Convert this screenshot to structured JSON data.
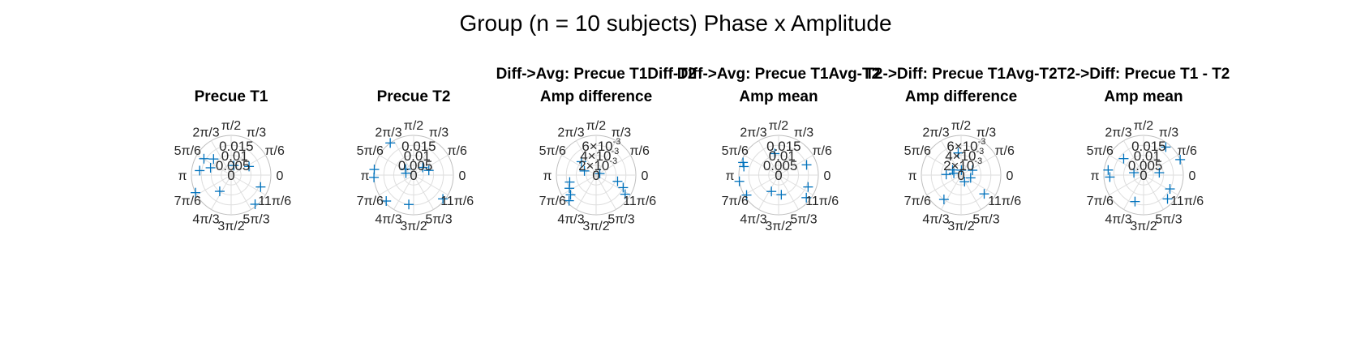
{
  "figure_title": "Group (n = 10 subjects) Phase x Amplitude",
  "colors": {
    "marker": "#0072BD",
    "grid": "#dedede",
    "text": "#262626"
  },
  "theta_tick_labels": [
    "0",
    "π/6",
    "π/3",
    "π/2",
    "2π/3",
    "5π/6",
    "π",
    "7π/6",
    "4π/3",
    "3π/2",
    "5π/3",
    "11π/6"
  ],
  "chart_data": [
    {
      "type": "scatter",
      "subtype": "polar",
      "marker": "+",
      "suptitle": "",
      "title": "Precue T1",
      "rlim": [
        0,
        0.02
      ],
      "r_tick_labels": [
        {
          "value": 0,
          "text": "0"
        },
        {
          "value": 0.005,
          "text": "0.005"
        },
        {
          "value": 0.01,
          "text": "0.01"
        },
        {
          "value": 0.015,
          "text": "0.015"
        }
      ],
      "points": [
        {
          "theta": 2.6,
          "r": 0.016
        },
        {
          "theta": 3.0,
          "r": 0.016
        },
        {
          "theta": 2.4,
          "r": 0.012
        },
        {
          "theta": 2.8,
          "r": 0.011
        },
        {
          "theta": 1.3,
          "r": 0.005
        },
        {
          "theta": 0.45,
          "r": 0.01
        },
        {
          "theta": 3.6,
          "r": 0.02
        },
        {
          "theta": 4.1,
          "r": 0.01
        },
        {
          "theta": 5.9,
          "r": 0.016
        },
        {
          "theta": 5.4,
          "r": 0.019
        }
      ]
    },
    {
      "type": "scatter",
      "subtype": "polar",
      "marker": "+",
      "suptitle": "",
      "title": "Precue T2",
      "rlim": [
        0,
        0.02
      ],
      "r_tick_labels": [
        {
          "value": 0,
          "text": "0"
        },
        {
          "value": 0.005,
          "text": "0.005"
        },
        {
          "value": 0.01,
          "text": "0.01"
        },
        {
          "value": 0.015,
          "text": "0.015"
        }
      ],
      "points": [
        {
          "theta": 2.2,
          "r": 0.02
        },
        {
          "theta": 3.0,
          "r": 0.02
        },
        {
          "theta": 3.2,
          "r": 0.02
        },
        {
          "theta": 2.5,
          "r": 0.005
        },
        {
          "theta": 3.9,
          "r": 0.019
        },
        {
          "theta": 4.55,
          "r": 0.015
        },
        {
          "theta": 5.6,
          "r": 0.019
        },
        {
          "theta": 0.3,
          "r": 0.008
        },
        {
          "theta": 0.7,
          "r": 0.006
        },
        {
          "theta": 2.9,
          "r": 0.004
        }
      ]
    },
    {
      "type": "scatter",
      "subtype": "polar",
      "marker": "+",
      "suptitle": "Diff->Avg: Precue T1Diff-T2",
      "title": "Amp difference",
      "rlim": [
        0,
        0.008
      ],
      "r_tick_labels": [
        {
          "value": 0,
          "text": "0"
        },
        {
          "value": 0.002,
          "text": "2×10",
          "exp": "-3"
        },
        {
          "value": 0.004,
          "text": "4×10",
          "exp": "-3"
        },
        {
          "value": 0.006,
          "text": "6×10",
          "exp": "-3"
        }
      ],
      "points": [
        {
          "theta": 0.4,
          "r": 0.0008
        },
        {
          "theta": 5.85,
          "r": 0.006
        },
        {
          "theta": 6.0,
          "r": 0.0045
        },
        {
          "theta": 5.7,
          "r": 0.007
        },
        {
          "theta": 3.6,
          "r": 0.006
        },
        {
          "theta": 3.9,
          "r": 0.0075
        },
        {
          "theta": 3.8,
          "r": 0.0065
        },
        {
          "theta": 2.4,
          "r": 0.004
        },
        {
          "theta": 2.8,
          "r": 0.0025
        },
        {
          "theta": 3.4,
          "r": 0.0055
        }
      ]
    },
    {
      "type": "scatter",
      "subtype": "polar",
      "marker": "+",
      "suptitle": "Diff->Avg: Precue T1Avg-T2",
      "title": "Amp mean",
      "rlim": [
        0,
        0.02
      ],
      "r_tick_labels": [
        {
          "value": 0,
          "text": "0"
        },
        {
          "value": 0.005,
          "text": "0.005"
        },
        {
          "value": 0.01,
          "text": "0.01"
        },
        {
          "value": 0.015,
          "text": "0.015"
        }
      ],
      "points": [
        {
          "theta": 2.8,
          "r": 0.019
        },
        {
          "theta": 2.9,
          "r": 0.018
        },
        {
          "theta": 3.3,
          "r": 0.02
        },
        {
          "theta": 3.7,
          "r": 0.019
        },
        {
          "theta": 1.75,
          "r": 0.011
        },
        {
          "theta": 5.9,
          "r": 0.016
        },
        {
          "theta": 5.6,
          "r": 0.018
        },
        {
          "theta": 4.3,
          "r": 0.009
        },
        {
          "theta": 0.35,
          "r": 0.015
        },
        {
          "theta": 4.85,
          "r": 0.01
        }
      ]
    },
    {
      "type": "scatter",
      "subtype": "polar",
      "marker": "+",
      "suptitle": "T2->Diff: Precue T1Avg-T2",
      "title": "Amp difference",
      "rlim": [
        0,
        0.008
      ],
      "r_tick_labels": [
        {
          "value": 0,
          "text": "0"
        },
        {
          "value": 0.002,
          "text": "2×10",
          "exp": "-3"
        },
        {
          "value": 0.004,
          "text": "4×10",
          "exp": "-3"
        },
        {
          "value": 0.006,
          "text": "6×10",
          "exp": "-3"
        }
      ],
      "points": [
        {
          "theta": 1.7,
          "r": 0.0045
        },
        {
          "theta": 2.6,
          "r": 0.002
        },
        {
          "theta": 2.9,
          "r": 0.0015
        },
        {
          "theta": 3.1,
          "r": 0.003
        },
        {
          "theta": 0.4,
          "r": 0.0025
        },
        {
          "theta": 6.0,
          "r": 0.002
        },
        {
          "theta": 5.6,
          "r": 0.006
        },
        {
          "theta": 4.1,
          "r": 0.006
        },
        {
          "theta": 5.2,
          "r": 0.0015
        },
        {
          "theta": 1.5,
          "r": 0.001
        }
      ]
    },
    {
      "type": "scatter",
      "subtype": "polar",
      "marker": "+",
      "suptitle": "T2->Diff: Precue T1 - T2",
      "title": "Amp mean",
      "rlim": [
        0,
        0.02
      ],
      "r_tick_labels": [
        {
          "value": 0,
          "text": "0"
        },
        {
          "value": 0.005,
          "text": "0.005"
        },
        {
          "value": 0.01,
          "text": "0.01"
        },
        {
          "value": 0.015,
          "text": "0.015"
        }
      ],
      "points": [
        {
          "theta": 2.45,
          "r": 0.013
        },
        {
          "theta": 3.0,
          "r": 0.018
        },
        {
          "theta": 3.2,
          "r": 0.017
        },
        {
          "theta": 0.9,
          "r": 0.018
        },
        {
          "theta": 0.4,
          "r": 0.02
        },
        {
          "theta": 5.8,
          "r": 0.015
        },
        {
          "theta": 5.5,
          "r": 0.017
        },
        {
          "theta": 4.4,
          "r": 0.014
        },
        {
          "theta": 0.15,
          "r": 0.008
        },
        {
          "theta": 2.9,
          "r": 0.005
        }
      ]
    }
  ]
}
